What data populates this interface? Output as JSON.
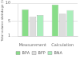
{
  "chart_data": {
    "type": "bar",
    "ylabel": "Total volume shrinkage (%)",
    "categories": [
      "Measurement",
      "Calculation"
    ],
    "series": [
      {
        "name": "BPA",
        "color": "#88DD88",
        "values": [
          8.3,
          9.6
        ]
      },
      {
        "name": "BFP",
        "color": "#DDDDDD",
        "values": [
          6.3,
          7.1
        ]
      },
      {
        "name": "BNA",
        "color": "#AAEEBB",
        "values": [
          6.7,
          8.1
        ]
      }
    ],
    "ylim": [
      1,
      10
    ],
    "yticks": [
      1,
      5,
      10
    ],
    "grid": true,
    "legend": "bottom"
  }
}
